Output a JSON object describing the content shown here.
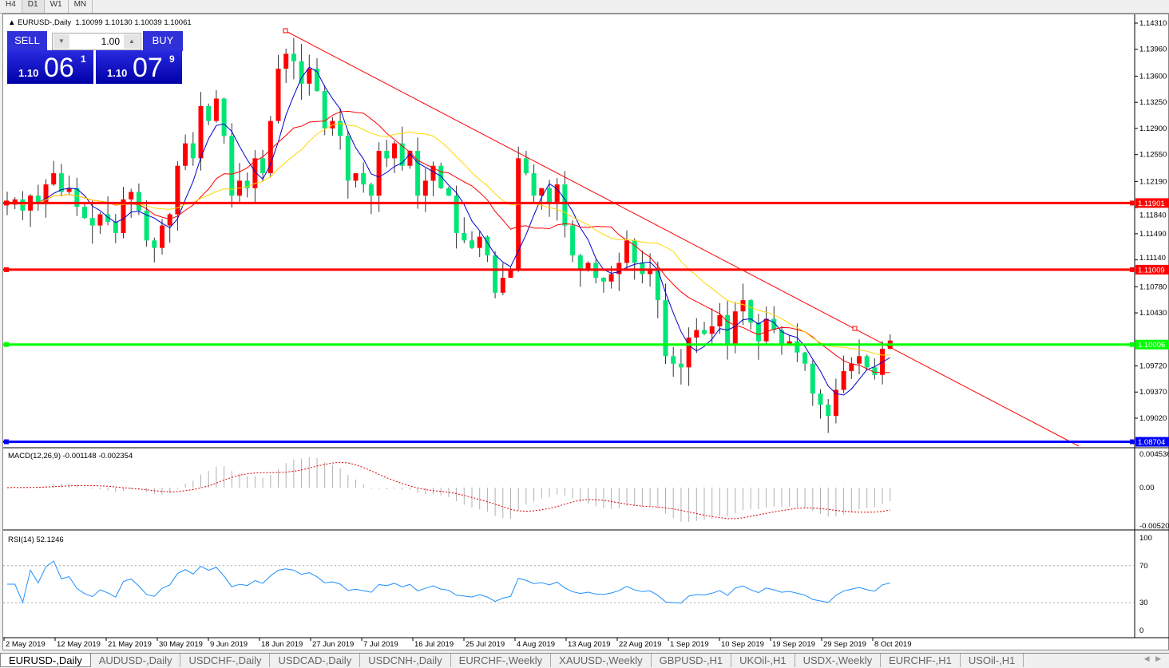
{
  "timeframes": [
    "H4",
    "D1",
    "W1",
    "MN"
  ],
  "active_timeframe": "D1",
  "header": {
    "symbol": "EURUSD-,Daily",
    "ohlc": "1.10099 1.10130 1.10039 1.10061"
  },
  "trade_panel": {
    "sell_label": "SELL",
    "buy_label": "BUY",
    "lot": "1.00",
    "sell_small": "1.10",
    "sell_big": "06",
    "sell_pip": "1",
    "buy_small": "1.10",
    "buy_big": "07",
    "buy_pip": "9"
  },
  "price_axis": [
    "1.14310",
    "1.13960",
    "1.13600",
    "1.13250",
    "1.12900",
    "1.12550",
    "1.12190",
    "1.11840",
    "1.11490",
    "1.11140",
    "1.10780",
    "1.10430",
    "1.09720",
    "1.09370",
    "1.09020"
  ],
  "levels": [
    {
      "label": "1.11901",
      "color": "#ff0000"
    },
    {
      "label": "1.11009",
      "color": "#ff0000"
    },
    {
      "label": "1.10006",
      "color": "#00ff00"
    },
    {
      "label": "1.08704",
      "color": "#0000ff"
    }
  ],
  "macd": {
    "label": "MACD(12,26,9) -0.001148 -0.002354",
    "axis": [
      "0.004536",
      "0.00",
      "-0.005205"
    ]
  },
  "rsi": {
    "label": "RSI(14) 52.1246",
    "axis": [
      "100",
      "70",
      "30",
      "0"
    ]
  },
  "date_axis": [
    "2 May 2019",
    "12 May 2019",
    "21 May 2019",
    "30 May 2019",
    "9 Jun 2019",
    "18 Jun 2019",
    "27 Jun 2019",
    "7 Jul 2019",
    "16 Jul 2019",
    "25 Jul 2019",
    "4 Aug 2019",
    "13 Aug 2019",
    "22 Aug 2019",
    "1 Sep 2019",
    "10 Sep 2019",
    "19 Sep 2019",
    "29 Sep 2019",
    "8 Oct 2019"
  ],
  "tabs": [
    "EURUSD-,Daily",
    "AUDUSD-,Daily",
    "USDCHF-,Daily",
    "USDCAD-,Daily",
    "USDCNH-,Daily",
    "EURCHF-,Weekly",
    "XAUUSD-,Weekly",
    "GBPUSD-,H1",
    "UKOil-,H1",
    "USDX-,Weekly",
    "EURCHF-,H1",
    "USOil-,H1"
  ],
  "active_tab": "EURUSD-,Daily",
  "chart_data": {
    "type": "candlestick",
    "colors": {
      "up": "#ff0000",
      "down": "#00e676",
      "ma_fast": "#0000cc",
      "ma_mid": "#ff0000",
      "ma_slow": "#ffd700",
      "trendline": "#ff0000"
    },
    "closes": [
      1.1188,
      1.1195,
      1.118,
      1.12,
      1.119,
      1.1215,
      1.123,
      1.1205,
      1.121,
      1.1185,
      1.117,
      1.116,
      1.1175,
      1.1165,
      1.115,
      1.1195,
      1.1205,
      1.118,
      1.114,
      1.113,
      1.116,
      1.1175,
      1.124,
      1.127,
      1.125,
      1.132,
      1.13,
      1.133,
      1.128,
      1.12,
      1.122,
      1.121,
      1.125,
      1.123,
      1.13,
      1.137,
      1.139,
      1.138,
      1.135,
      1.137,
      1.134,
      1.129,
      1.13,
      1.128,
      1.122,
      1.123,
      1.1215,
      1.12,
      1.126,
      1.125,
      1.127,
      1.124,
      1.126,
      1.12,
      1.122,
      1.124,
      1.121,
      1.12,
      1.115,
      1.114,
      1.113,
      1.1145,
      1.112,
      1.107,
      1.109,
      1.11,
      1.125,
      1.123,
      1.12,
      1.121,
      1.119,
      1.1215,
      1.116,
      1.112,
      1.11,
      1.111,
      1.109,
      1.1085,
      1.1095,
      1.111,
      1.114,
      1.111,
      1.1095,
      1.11,
      1.106,
      1.0985,
      1.0975,
      1.097,
      1.101,
      1.102,
      1.1015,
      1.1025,
      1.104,
      1.1,
      1.1045,
      1.106,
      1.103,
      1.1005,
      1.1035,
      1.102,
      1.1,
      1.1005,
      1.099,
      1.0975,
      1.0935,
      1.092,
      1.0905,
      1.094,
      1.0965,
      1.0975,
      1.0985,
      1.097,
      1.096,
      1.0995,
      1.1006
    ]
  }
}
